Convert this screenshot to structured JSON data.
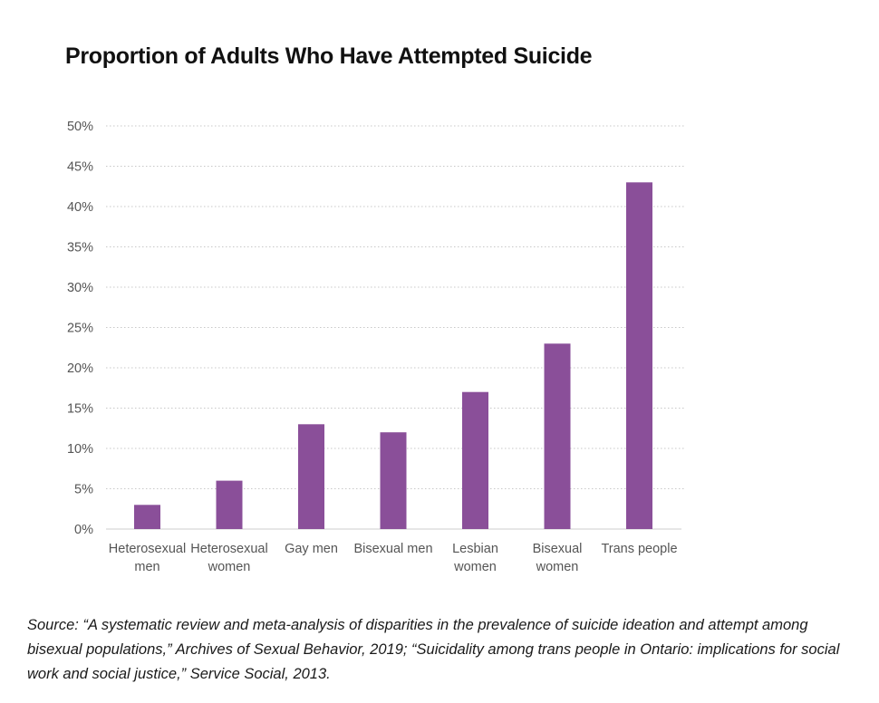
{
  "chart_data": {
    "type": "bar",
    "title": "Proportion of Adults Who Have Attempted Suicide",
    "xlabel": "",
    "ylabel": "",
    "ylim": [
      0,
      50
    ],
    "y_ticks": [
      0,
      5,
      10,
      15,
      20,
      25,
      30,
      35,
      40,
      45,
      50
    ],
    "y_tick_suffix": "%",
    "grid": true,
    "categories": [
      [
        "Heterosexual",
        "men"
      ],
      [
        "Heterosexual",
        "women"
      ],
      [
        "Gay men"
      ],
      [
        "Bisexual men"
      ],
      [
        "Lesbian",
        "women"
      ],
      [
        "Bisexual",
        "women"
      ],
      [
        "Trans people"
      ]
    ],
    "values": [
      3,
      6,
      13,
      12,
      17,
      23,
      43
    ],
    "bar_color": "#8a4f99"
  },
  "source": "Source: “A systematic review and meta-analysis of disparities in the prevalence of suicide ideation and attempt among bisexual populations,” Archives of Sexual Behavior, 2019; “Suicidality among trans people in Ontario: implications for social work and social justice,” Service Social, 2013."
}
